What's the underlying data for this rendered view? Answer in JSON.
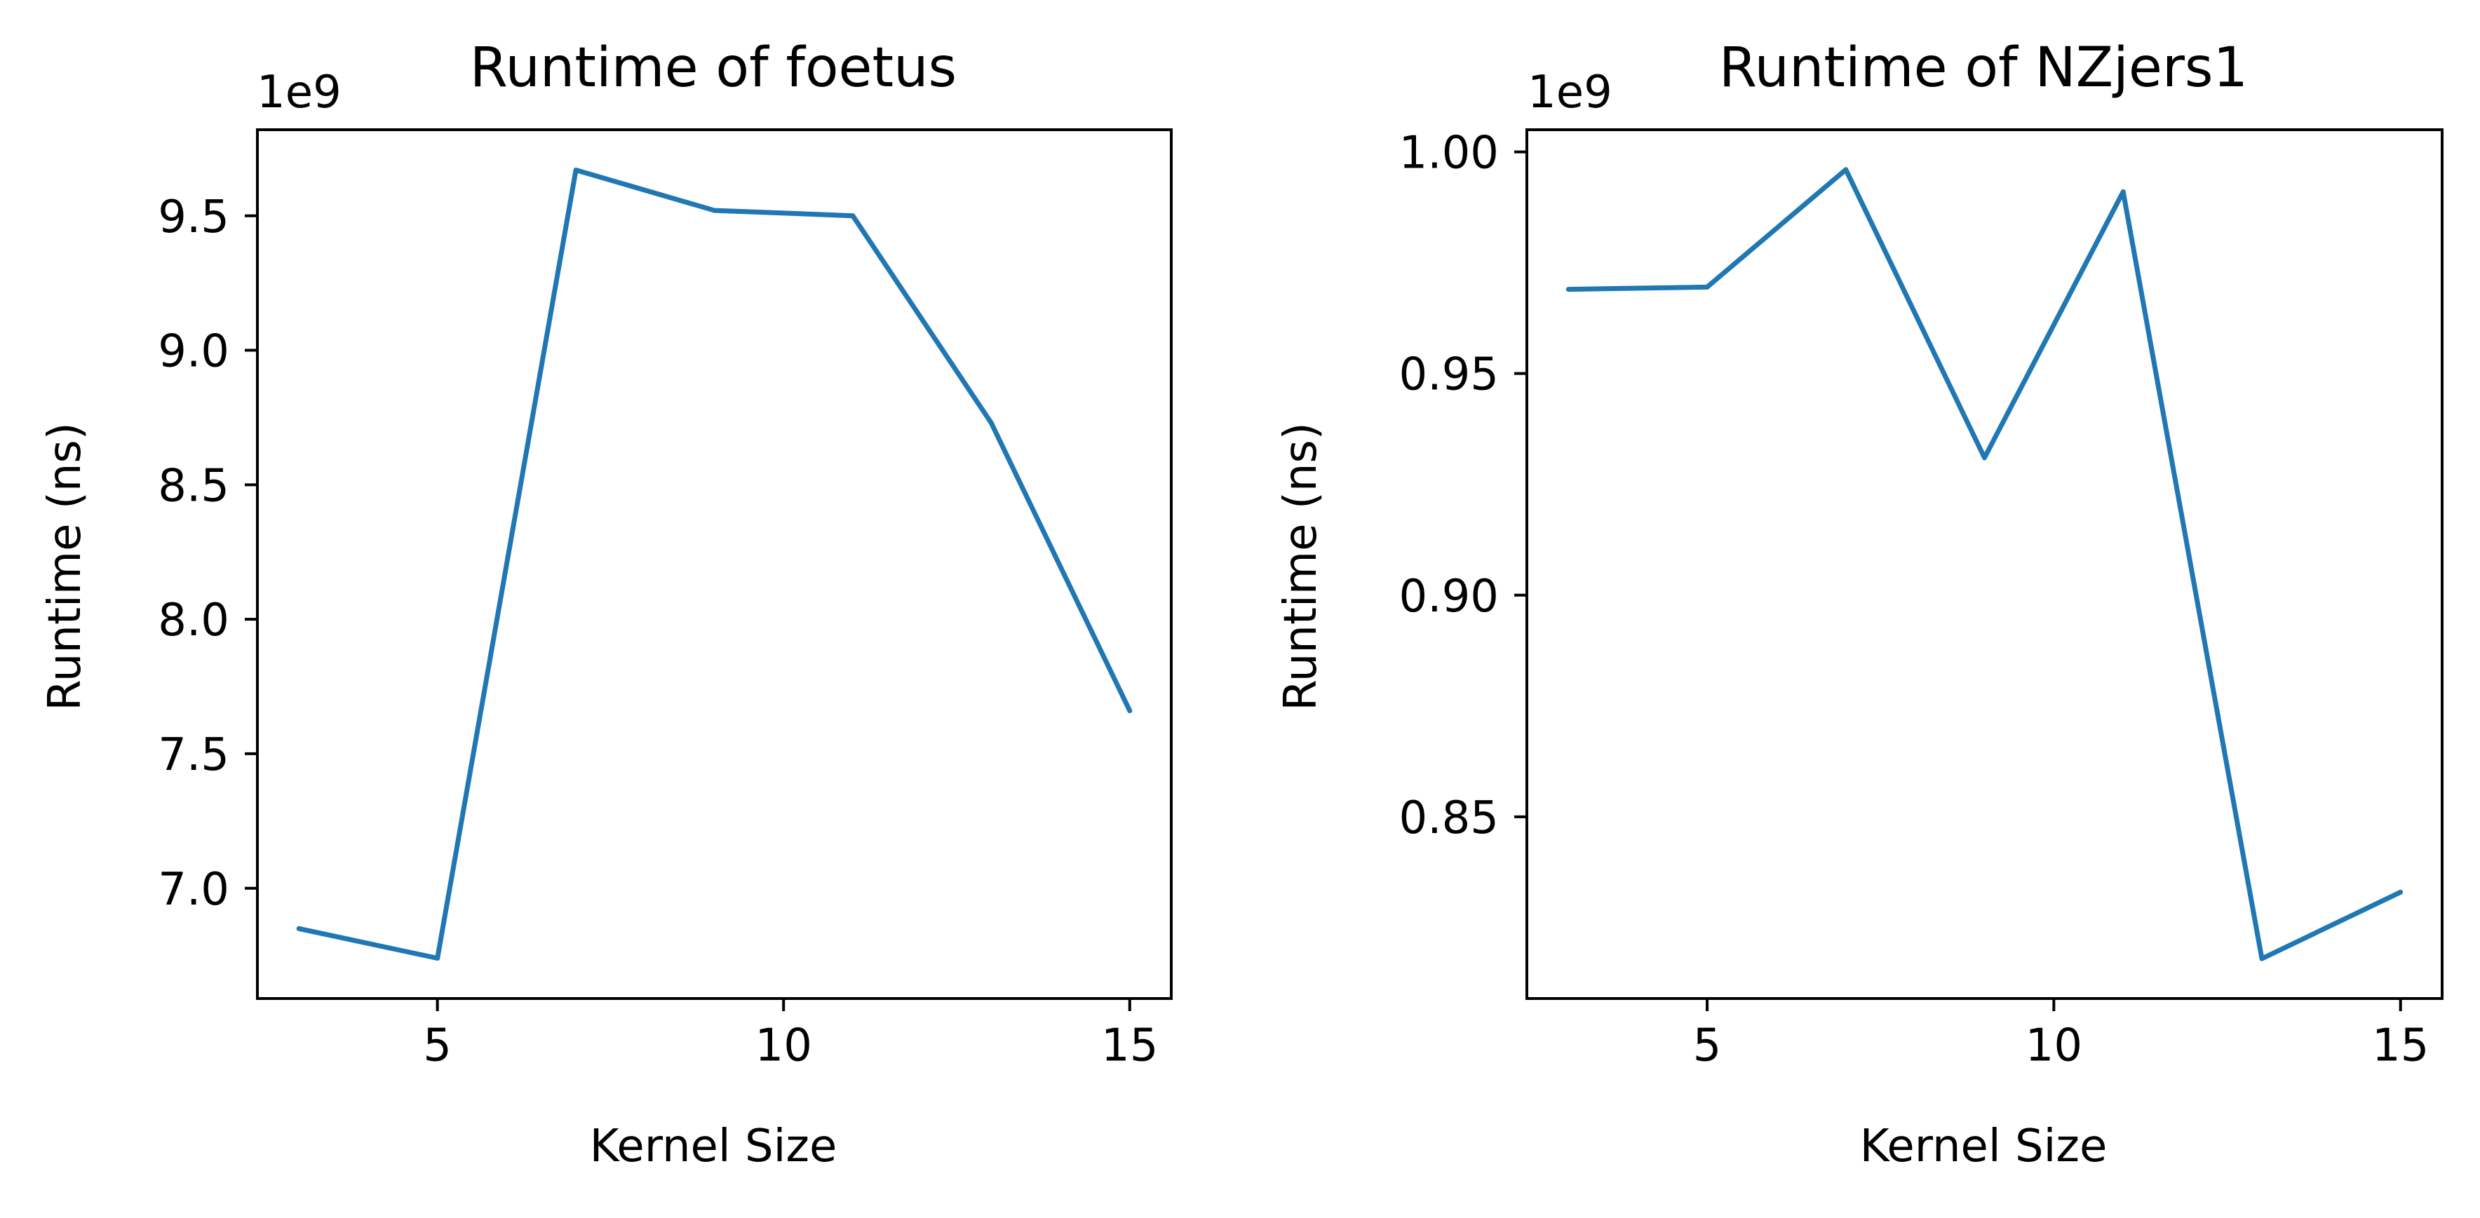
{
  "chart_data": [
    {
      "type": "line",
      "title": "Runtime of foetus",
      "xlabel": "Kernel Size",
      "ylabel": "Runtime (ns)",
      "y_offset_label": "1e9",
      "x": [
        3,
        5,
        7,
        9,
        11,
        13,
        15
      ],
      "y": [
        6.85,
        6.74,
        9.67,
        9.52,
        9.5,
        8.73,
        7.66
      ],
      "xlim": [
        2.4,
        15.6
      ],
      "ylim": [
        6.59,
        9.82
      ],
      "xticks": [
        5,
        10,
        15
      ],
      "xtick_labels": [
        "5",
        "10",
        "15"
      ],
      "yticks": [
        7.0,
        7.5,
        8.0,
        8.5,
        9.0,
        9.5
      ],
      "ytick_labels": [
        "7.0",
        "7.5",
        "8.0",
        "8.5",
        "9.0",
        "9.5"
      ],
      "color": "#1f77b4",
      "grid": false,
      "legend": "none"
    },
    {
      "type": "line",
      "title": "Runtime of NZjers1",
      "xlabel": "Kernel Size",
      "ylabel": "Runtime (ns)",
      "y_offset_label": "1e9",
      "x": [
        3,
        5,
        7,
        9,
        11,
        13,
        15
      ],
      "y": [
        0.969,
        0.9695,
        0.996,
        0.931,
        0.991,
        0.818,
        0.833
      ],
      "xlim": [
        2.4,
        15.6
      ],
      "ylim": [
        0.809,
        1.005
      ],
      "xticks": [
        5,
        10,
        15
      ],
      "xtick_labels": [
        "5",
        "10",
        "15"
      ],
      "yticks": [
        0.85,
        0.9,
        0.95,
        1.0
      ],
      "ytick_labels": [
        "0.85",
        "0.90",
        "0.95",
        "1.00"
      ],
      "color": "#1f77b4",
      "grid": false,
      "legend": "none"
    }
  ]
}
